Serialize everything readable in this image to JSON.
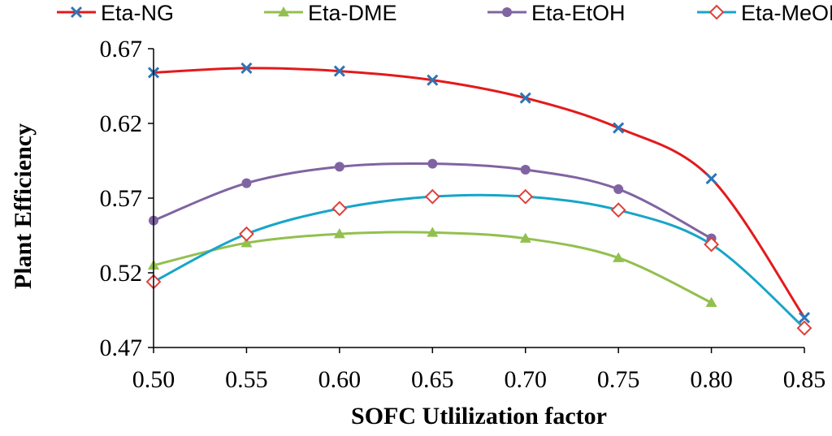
{
  "chart_data": {
    "type": "line",
    "title": "",
    "xlabel": "SOFC Utlilization factor",
    "ylabel": "Plant Efficiency",
    "xlim": [
      0.5,
      0.85
    ],
    "ylim": [
      0.47,
      0.67
    ],
    "x_ticks": [
      0.5,
      0.55,
      0.6,
      0.65,
      0.7,
      0.75,
      0.8,
      0.85
    ],
    "x_tick_labels": [
      "0.50",
      "0.55",
      "0.60",
      "0.65",
      "0.70",
      "0.75",
      "0.80",
      "0.85"
    ],
    "y_ticks": [
      0.47,
      0.52,
      0.57,
      0.62,
      0.67
    ],
    "y_tick_labels": [
      "0.47",
      "0.52",
      "0.57",
      "0.62",
      "0.67"
    ],
    "legend_position": "top",
    "grid": false,
    "series": [
      {
        "name": "Eta-NG",
        "color": "#e31a1c",
        "marker": "x",
        "marker_color": "#2e75b6",
        "x": [
          0.5,
          0.55,
          0.6,
          0.65,
          0.7,
          0.75,
          0.8,
          0.85
        ],
        "values": [
          0.654,
          0.657,
          0.655,
          0.649,
          0.637,
          0.617,
          0.583,
          0.49
        ]
      },
      {
        "name": "Eta-DME",
        "color": "#92c04f",
        "marker": "triangle",
        "marker_color": "#92c04f",
        "x": [
          0.5,
          0.55,
          0.6,
          0.65,
          0.7,
          0.75,
          0.8
        ],
        "values": [
          0.525,
          0.54,
          0.546,
          0.547,
          0.543,
          0.53,
          0.5
        ]
      },
      {
        "name": "Eta-EtOH",
        "color": "#8064a2",
        "marker": "circle",
        "marker_color": "#8064a2",
        "x": [
          0.5,
          0.55,
          0.6,
          0.65,
          0.7,
          0.75,
          0.8
        ],
        "values": [
          0.555,
          0.58,
          0.591,
          0.593,
          0.589,
          0.576,
          0.543
        ]
      },
      {
        "name": "Eta-MeOH",
        "color": "#17a5c9",
        "marker": "diamond",
        "marker_color": "#e0403a",
        "x": [
          0.5,
          0.55,
          0.6,
          0.65,
          0.7,
          0.75,
          0.8,
          0.85
        ],
        "values": [
          0.514,
          0.546,
          0.563,
          0.571,
          0.571,
          0.562,
          0.539,
          0.483
        ]
      }
    ]
  }
}
